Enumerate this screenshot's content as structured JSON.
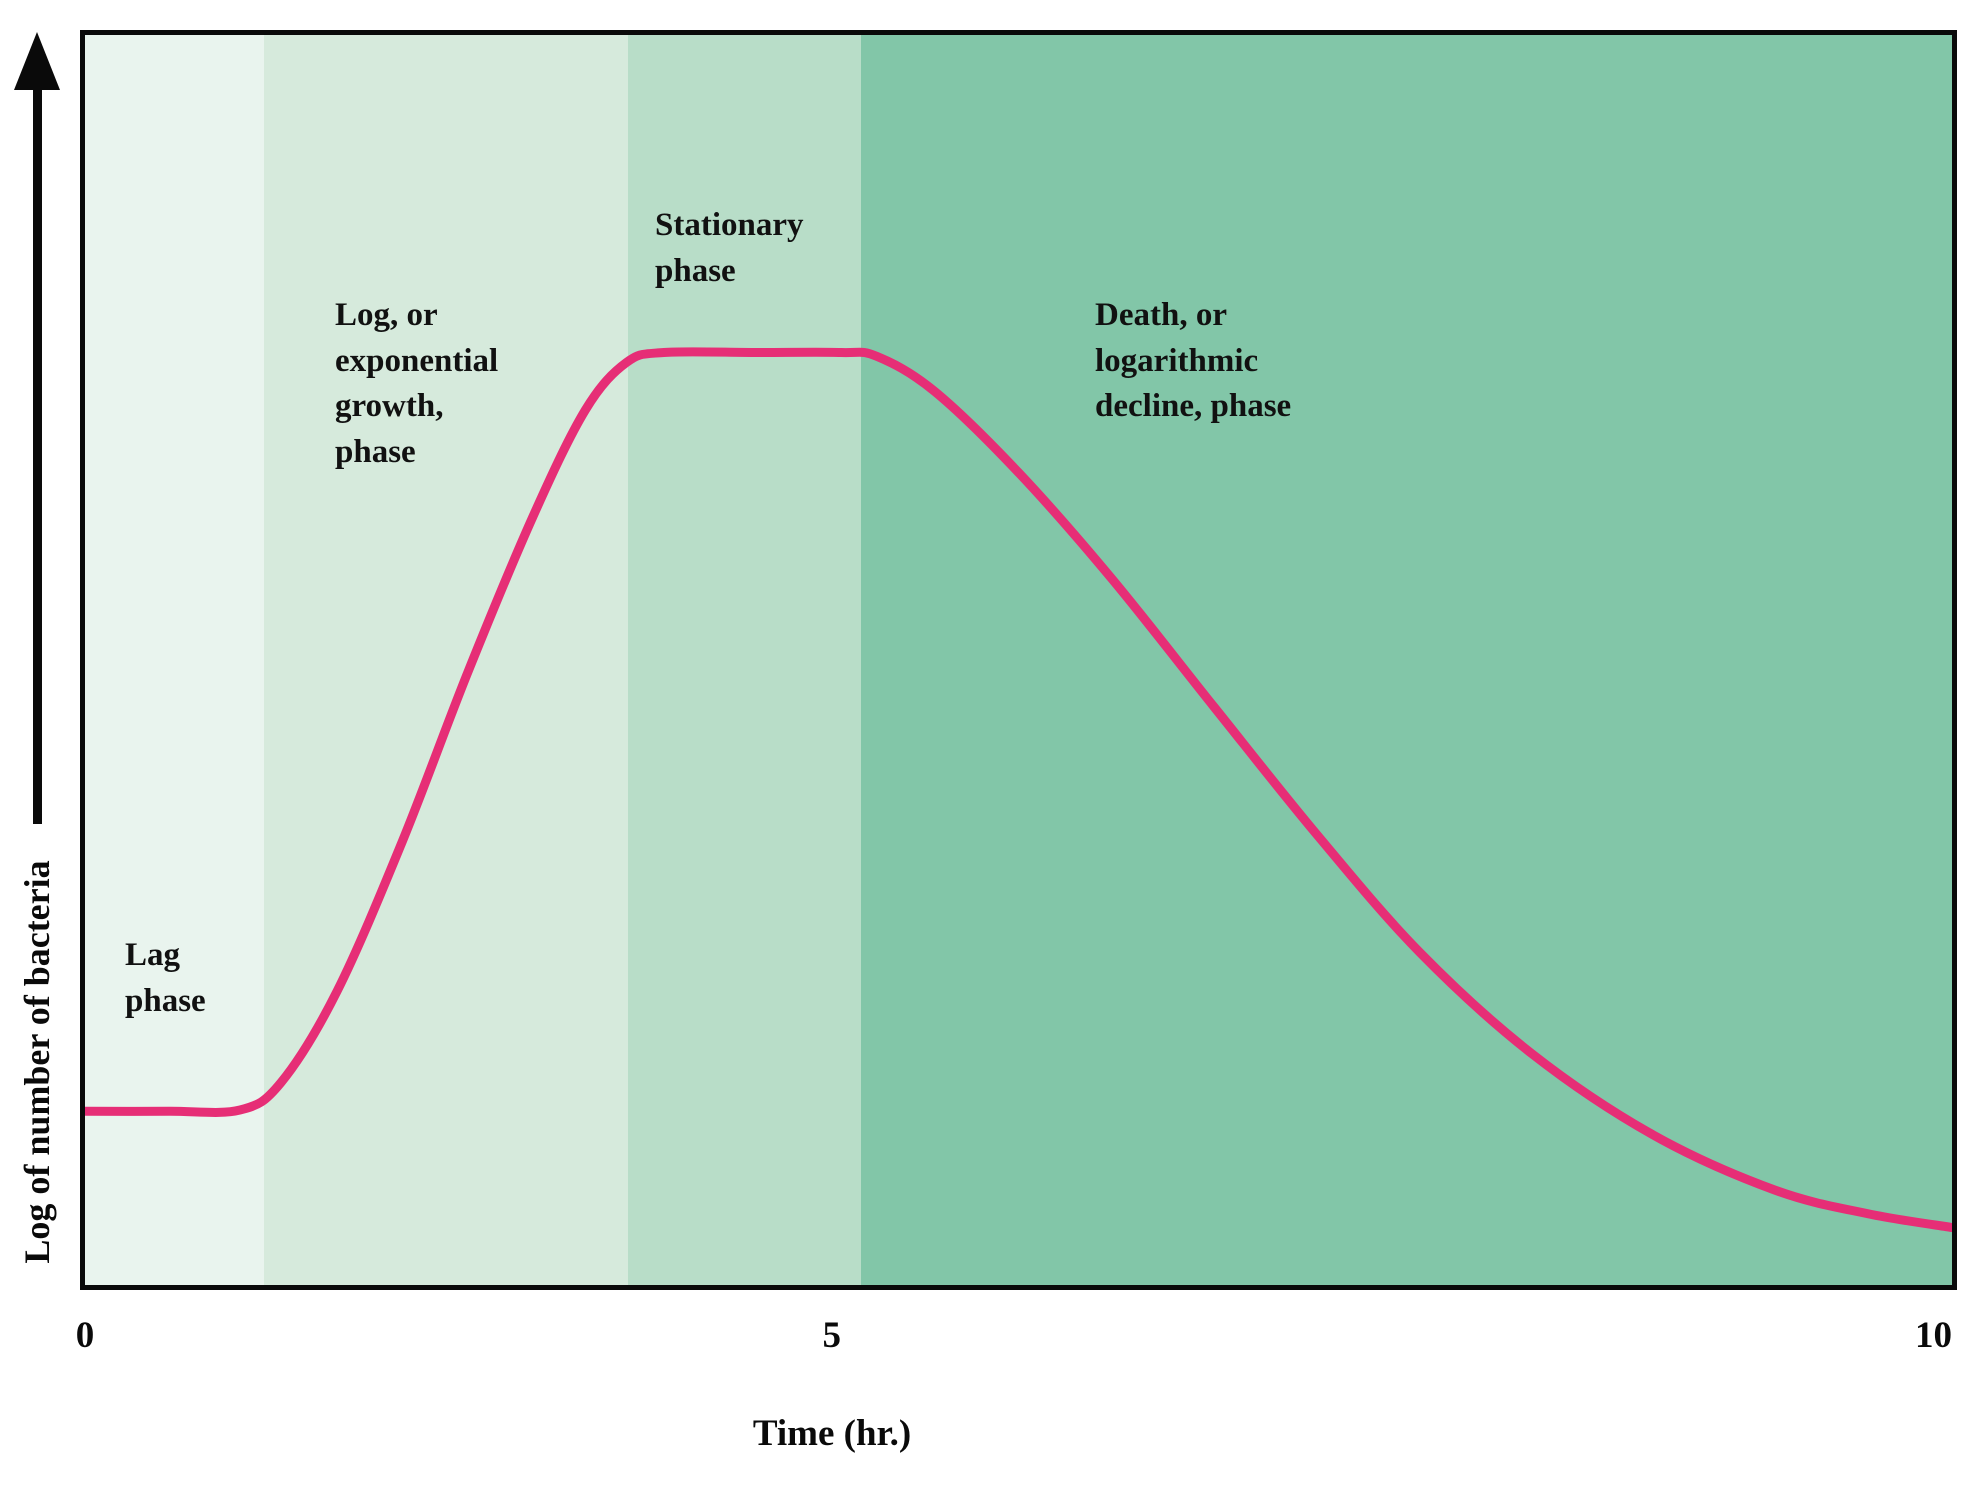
{
  "chart_data": {
    "type": "line",
    "xlabel": "Time (hr.)",
    "ylabel": "Log of number of bacteria",
    "grid": false,
    "legend": "none",
    "x_axis_range_hr": [
      0,
      10
    ],
    "x_ticks": [
      {
        "label": "0",
        "pos": 0.0
      },
      {
        "label": "5",
        "pos": 0.4
      },
      {
        "label": "10",
        "pos": 1.0
      }
    ],
    "curve": {
      "name": "log-of-bacteria-count",
      "color": "#e62e76",
      "stroke_width": 9,
      "points": [
        [
          0.0,
          0.139
        ],
        [
          0.045,
          0.139
        ],
        [
          0.083,
          0.14
        ],
        [
          0.105,
          0.162
        ],
        [
          0.135,
          0.235
        ],
        [
          0.17,
          0.355
        ],
        [
          0.205,
          0.49
        ],
        [
          0.24,
          0.615
        ],
        [
          0.268,
          0.7
        ],
        [
          0.29,
          0.738
        ],
        [
          0.31,
          0.746
        ],
        [
          0.36,
          0.746
        ],
        [
          0.405,
          0.746
        ],
        [
          0.424,
          0.743
        ],
        [
          0.455,
          0.715
        ],
        [
          0.5,
          0.65
        ],
        [
          0.55,
          0.565
        ],
        [
          0.605,
          0.462
        ],
        [
          0.66,
          0.36
        ],
        [
          0.715,
          0.266
        ],
        [
          0.775,
          0.185
        ],
        [
          0.84,
          0.12
        ],
        [
          0.905,
          0.076
        ],
        [
          0.955,
          0.057
        ],
        [
          1.0,
          0.046
        ]
      ]
    },
    "phases": [
      {
        "name": "Lag phase",
        "label": "Lag\nphase",
        "x_start": 0.0,
        "x_end": 0.096,
        "color": "#e9f4ee"
      },
      {
        "name": "Log phase",
        "label": "Log, or\nexponential\ngrowth,\nphase",
        "x_start": 0.096,
        "x_end": 0.291,
        "color": "#d6eadc"
      },
      {
        "name": "Stationary phase",
        "label": "Stationary\nphase",
        "x_start": 0.291,
        "x_end": 0.4155,
        "color": "#b8ddc8"
      },
      {
        "name": "Death phase",
        "label": "Death, or\nlogarithmic\ndecline, phase",
        "x_start": 0.4155,
        "x_end": 1.0,
        "color": "#82c6a8"
      }
    ],
    "axis_color": "#0a0a0a"
  }
}
